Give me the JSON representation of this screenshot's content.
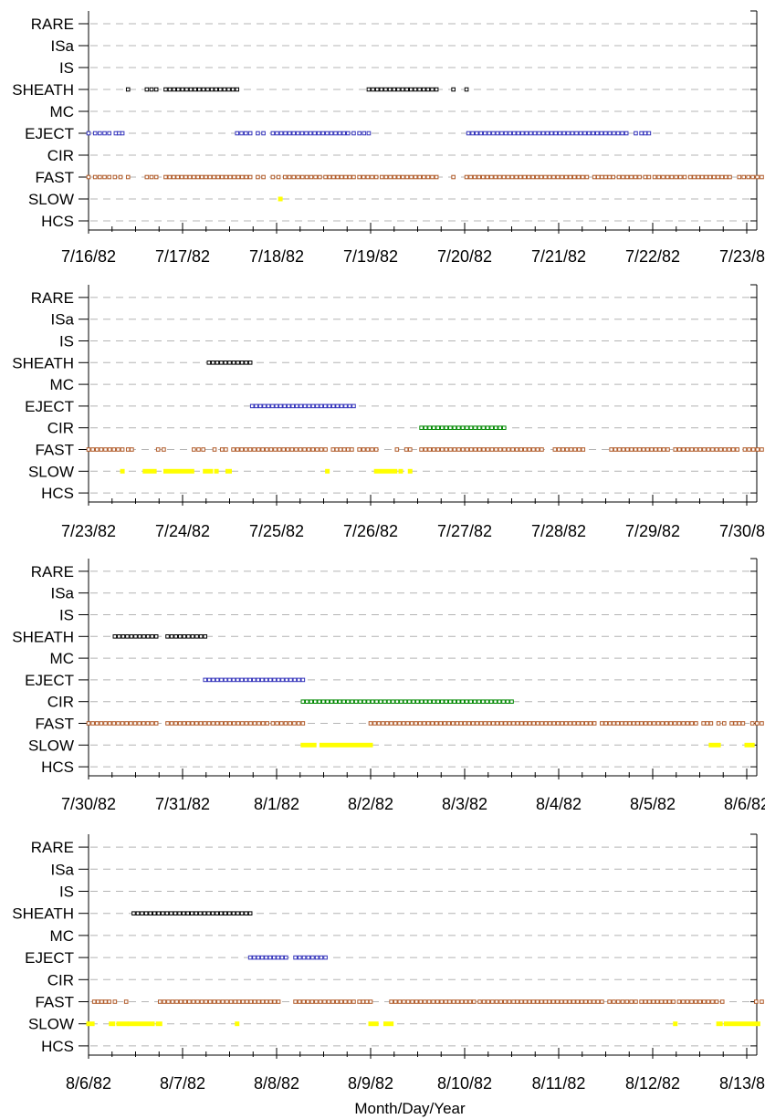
{
  "chart_data": [
    {
      "type": "scatter",
      "categories": [
        "RARE",
        "ISa",
        "IS",
        "SHEATH",
        "MC",
        "EJECT",
        "CIR",
        "FAST",
        "SLOW",
        "HCS"
      ],
      "x_ticks": [
        "7/16/82",
        "7/17/82",
        "7/18/82",
        "7/19/82",
        "7/20/82",
        "7/21/82",
        "7/22/82",
        "7/23/82"
      ],
      "xlabel": "",
      "grid": "dashed horizontal",
      "series": [
        {
          "category": "SHEATH",
          "color": "#000000",
          "style": "open",
          "segments": [
            [
              0.42,
              0.42
            ],
            [
              0.62,
              0.72
            ],
            [
              0.82,
              1.58
            ],
            [
              2.98,
              3.7
            ],
            [
              3.88,
              3.88
            ],
            [
              4.02,
              4.02
            ]
          ]
        },
        {
          "category": "EJECT",
          "color": "#3333bb",
          "style": "open",
          "segments": [
            [
              0.0,
              0.0
            ],
            [
              0.07,
              0.22
            ],
            [
              0.29,
              0.36
            ],
            [
              1.58,
              1.72
            ],
            [
              1.8,
              1.86
            ],
            [
              1.96,
              2.76
            ],
            [
              2.82,
              2.82
            ],
            [
              2.88,
              2.98
            ],
            [
              4.04,
              5.72
            ],
            [
              5.82,
              5.82
            ],
            [
              5.88,
              5.96
            ]
          ]
        },
        {
          "category": "FAST",
          "color": "#b05a28",
          "style": "open",
          "segments": [
            [
              0.0,
              0.0
            ],
            [
              0.07,
              0.22
            ],
            [
              0.28,
              0.34
            ],
            [
              0.42,
              0.42
            ],
            [
              0.62,
              0.72
            ],
            [
              0.82,
              1.72
            ],
            [
              1.8,
              1.86
            ],
            [
              1.96,
              2.02
            ],
            [
              2.09,
              2.46
            ],
            [
              2.52,
              2.82
            ],
            [
              2.88,
              3.06
            ],
            [
              3.12,
              3.7
            ],
            [
              3.88,
              3.88
            ],
            [
              4.02,
              5.3
            ],
            [
              5.38,
              5.58
            ],
            [
              5.64,
              5.86
            ],
            [
              5.92,
              5.96
            ],
            [
              6.02,
              6.34
            ],
            [
              6.4,
              6.82
            ],
            [
              6.92,
              7.16
            ]
          ]
        },
        {
          "category": "SLOW",
          "color": "#ffff00",
          "style": "filled",
          "segments": [
            [
              2.04,
              2.04
            ]
          ]
        }
      ]
    },
    {
      "type": "scatter",
      "categories": [
        "RARE",
        "ISa",
        "IS",
        "SHEATH",
        "MC",
        "EJECT",
        "CIR",
        "FAST",
        "SLOW",
        "HCS"
      ],
      "x_ticks": [
        "7/23/82",
        "7/24/82",
        "7/25/82",
        "7/26/82",
        "7/27/82",
        "7/28/82",
        "7/29/82",
        "7/30/82"
      ],
      "xlabel": "",
      "grid": "dashed horizontal",
      "series": [
        {
          "category": "SHEATH",
          "color": "#000000",
          "style": "open",
          "segments": [
            [
              1.28,
              1.72
            ]
          ]
        },
        {
          "category": "EJECT",
          "color": "#3333bb",
          "style": "open",
          "segments": [
            [
              1.74,
              2.82
            ]
          ]
        },
        {
          "category": "CIR",
          "color": "#008800",
          "style": "open",
          "segments": [
            [
              3.54,
              4.42
            ]
          ]
        },
        {
          "category": "FAST",
          "color": "#b05a28",
          "style": "open",
          "segments": [
            [
              0.0,
              0.36
            ],
            [
              0.42,
              0.46
            ],
            [
              0.74,
              0.8
            ],
            [
              1.12,
              1.22
            ],
            [
              1.34,
              1.34
            ],
            [
              1.42,
              1.46
            ],
            [
              1.54,
              2.52
            ],
            [
              2.6,
              2.8
            ],
            [
              2.88,
              3.06
            ],
            [
              3.28,
              3.28
            ],
            [
              3.38,
              3.42
            ],
            [
              3.54,
              4.82
            ],
            [
              4.96,
              5.26
            ],
            [
              5.56,
              6.16
            ],
            [
              6.24,
              6.9
            ],
            [
              6.98,
              7.16
            ]
          ]
        },
        {
          "category": "SLOW",
          "color": "#ffff00",
          "style": "filled",
          "segments": [
            [
              0.36,
              0.36
            ],
            [
              0.6,
              0.7
            ],
            [
              0.82,
              1.1
            ],
            [
              1.24,
              1.3
            ],
            [
              1.36,
              1.36
            ],
            [
              1.48,
              1.5
            ],
            [
              2.54,
              2.54
            ],
            [
              3.06,
              3.26
            ],
            [
              3.32,
              3.32
            ],
            [
              3.42,
              3.42
            ]
          ]
        }
      ]
    },
    {
      "type": "scatter",
      "categories": [
        "RARE",
        "ISa",
        "IS",
        "SHEATH",
        "MC",
        "EJECT",
        "CIR",
        "FAST",
        "SLOW",
        "HCS"
      ],
      "x_ticks": [
        "7/30/82",
        "7/31/82",
        "8/1/82",
        "8/2/82",
        "8/3/82",
        "8/4/82",
        "8/5/82",
        "8/6/82"
      ],
      "xlabel": "",
      "grid": "dashed horizontal",
      "series": [
        {
          "category": "SHEATH",
          "color": "#000000",
          "style": "open",
          "segments": [
            [
              0.28,
              0.72
            ],
            [
              0.84,
              1.24
            ]
          ]
        },
        {
          "category": "EJECT",
          "color": "#3333bb",
          "style": "open",
          "segments": [
            [
              1.24,
              2.28
            ]
          ]
        },
        {
          "category": "CIR",
          "color": "#008800",
          "style": "open",
          "segments": [
            [
              2.28,
              4.5
            ]
          ]
        },
        {
          "category": "FAST",
          "color": "#b05a28",
          "style": "open",
          "segments": [
            [
              0.0,
              0.72
            ],
            [
              0.84,
              1.9
            ],
            [
              1.96,
              2.28
            ],
            [
              3.0,
              3.92
            ],
            [
              3.96,
              5.38
            ],
            [
              5.46,
              5.84
            ],
            [
              5.88,
              6.46
            ],
            [
              6.54,
              6.62
            ],
            [
              6.7,
              6.76
            ],
            [
              6.84,
              6.96
            ],
            [
              7.06,
              7.16
            ]
          ]
        },
        {
          "category": "SLOW",
          "color": "#ffff00",
          "style": "filled",
          "segments": [
            [
              2.28,
              2.4
            ],
            [
              2.48,
              3.0
            ],
            [
              6.62,
              6.7
            ],
            [
              7.0,
              7.06
            ]
          ]
        }
      ]
    },
    {
      "type": "scatter",
      "categories": [
        "RARE",
        "ISa",
        "IS",
        "SHEATH",
        "MC",
        "EJECT",
        "CIR",
        "FAST",
        "SLOW",
        "HCS"
      ],
      "x_ticks": [
        "8/6/82",
        "8/7/82",
        "8/8/82",
        "8/9/82",
        "8/10/82",
        "8/11/82",
        "8/12/82",
        "8/13/82"
      ],
      "xlabel": "Month/Day/Year",
      "grid": "dashed horizontal",
      "series": [
        {
          "category": "SHEATH",
          "color": "#000000",
          "style": "open",
          "segments": [
            [
              0.48,
              1.72
            ]
          ]
        },
        {
          "category": "EJECT",
          "color": "#3333bb",
          "style": "open",
          "segments": [
            [
              1.72,
              2.1
            ],
            [
              2.2,
              2.52
            ]
          ]
        },
        {
          "category": "FAST",
          "color": "#b05a28",
          "style": "open",
          "segments": [
            [
              0.06,
              0.22
            ],
            [
              0.28,
              0.3
            ],
            [
              0.4,
              0.4
            ],
            [
              0.76,
              1.56
            ],
            [
              1.6,
              2.02
            ],
            [
              2.2,
              2.82
            ],
            [
              2.88,
              3.0
            ],
            [
              3.22,
              3.8
            ],
            [
              3.84,
              4.1
            ],
            [
              4.16,
              4.52
            ],
            [
              4.56,
              4.86
            ],
            [
              4.9,
              5.46
            ],
            [
              5.54,
              5.82
            ],
            [
              5.88,
              6.22
            ],
            [
              6.28,
              6.68
            ],
            [
              6.74,
              6.74
            ],
            [
              7.1,
              7.16
            ]
          ]
        },
        {
          "category": "SLOW",
          "color": "#ffff00",
          "style": "filled",
          "segments": [
            [
              0.0,
              0.04
            ],
            [
              0.24,
              0.26
            ],
            [
              0.32,
              0.4
            ],
            [
              0.44,
              0.68
            ],
            [
              0.74,
              0.76
            ],
            [
              1.58,
              1.58
            ],
            [
              3.0,
              3.06
            ],
            [
              3.16,
              3.22
            ],
            [
              6.24,
              6.24
            ],
            [
              6.7,
              6.72
            ],
            [
              6.78,
              7.12
            ]
          ]
        }
      ]
    }
  ]
}
